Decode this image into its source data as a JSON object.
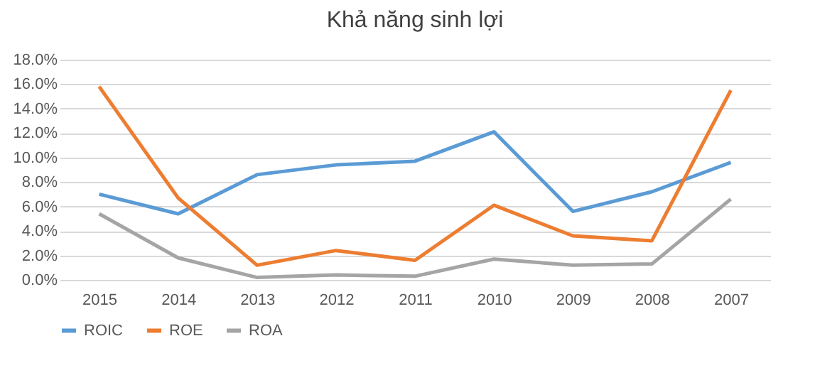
{
  "chart_data": {
    "type": "line",
    "title": "Khả năng sinh lợi",
    "categories": [
      "2015",
      "2014",
      "2013",
      "2012",
      "2011",
      "2010",
      "2009",
      "2008",
      "2007"
    ],
    "series": [
      {
        "name": "ROIC",
        "color": "#5b9bd5",
        "values": [
          7.0,
          5.4,
          8.6,
          9.4,
          9.7,
          12.1,
          5.6,
          7.2,
          9.6
        ]
      },
      {
        "name": "ROE",
        "color": "#ed7d31",
        "values": [
          15.8,
          6.7,
          1.2,
          2.4,
          1.6,
          6.1,
          3.6,
          3.2,
          15.5
        ]
      },
      {
        "name": "ROA",
        "color": "#a5a5a5",
        "values": [
          5.4,
          1.8,
          0.2,
          0.4,
          0.3,
          1.7,
          1.2,
          1.3,
          6.6
        ]
      }
    ],
    "ylim": [
      0,
      18
    ],
    "yticks": [
      {
        "value": 0,
        "label": "0.0%"
      },
      {
        "value": 2,
        "label": "2.0%"
      },
      {
        "value": 4,
        "label": "4.0%"
      },
      {
        "value": 6,
        "label": "6.0%"
      },
      {
        "value": 8,
        "label": "8.0%"
      },
      {
        "value": 10,
        "label": "10.0%"
      },
      {
        "value": 12,
        "label": "12.0%"
      },
      {
        "value": 14,
        "label": "14.0%"
      },
      {
        "value": 16,
        "label": "16.0%"
      },
      {
        "value": 18,
        "label": "18.0%"
      }
    ],
    "grid": "y",
    "legend": "bottom",
    "marker": "none",
    "line_style": "solid"
  }
}
